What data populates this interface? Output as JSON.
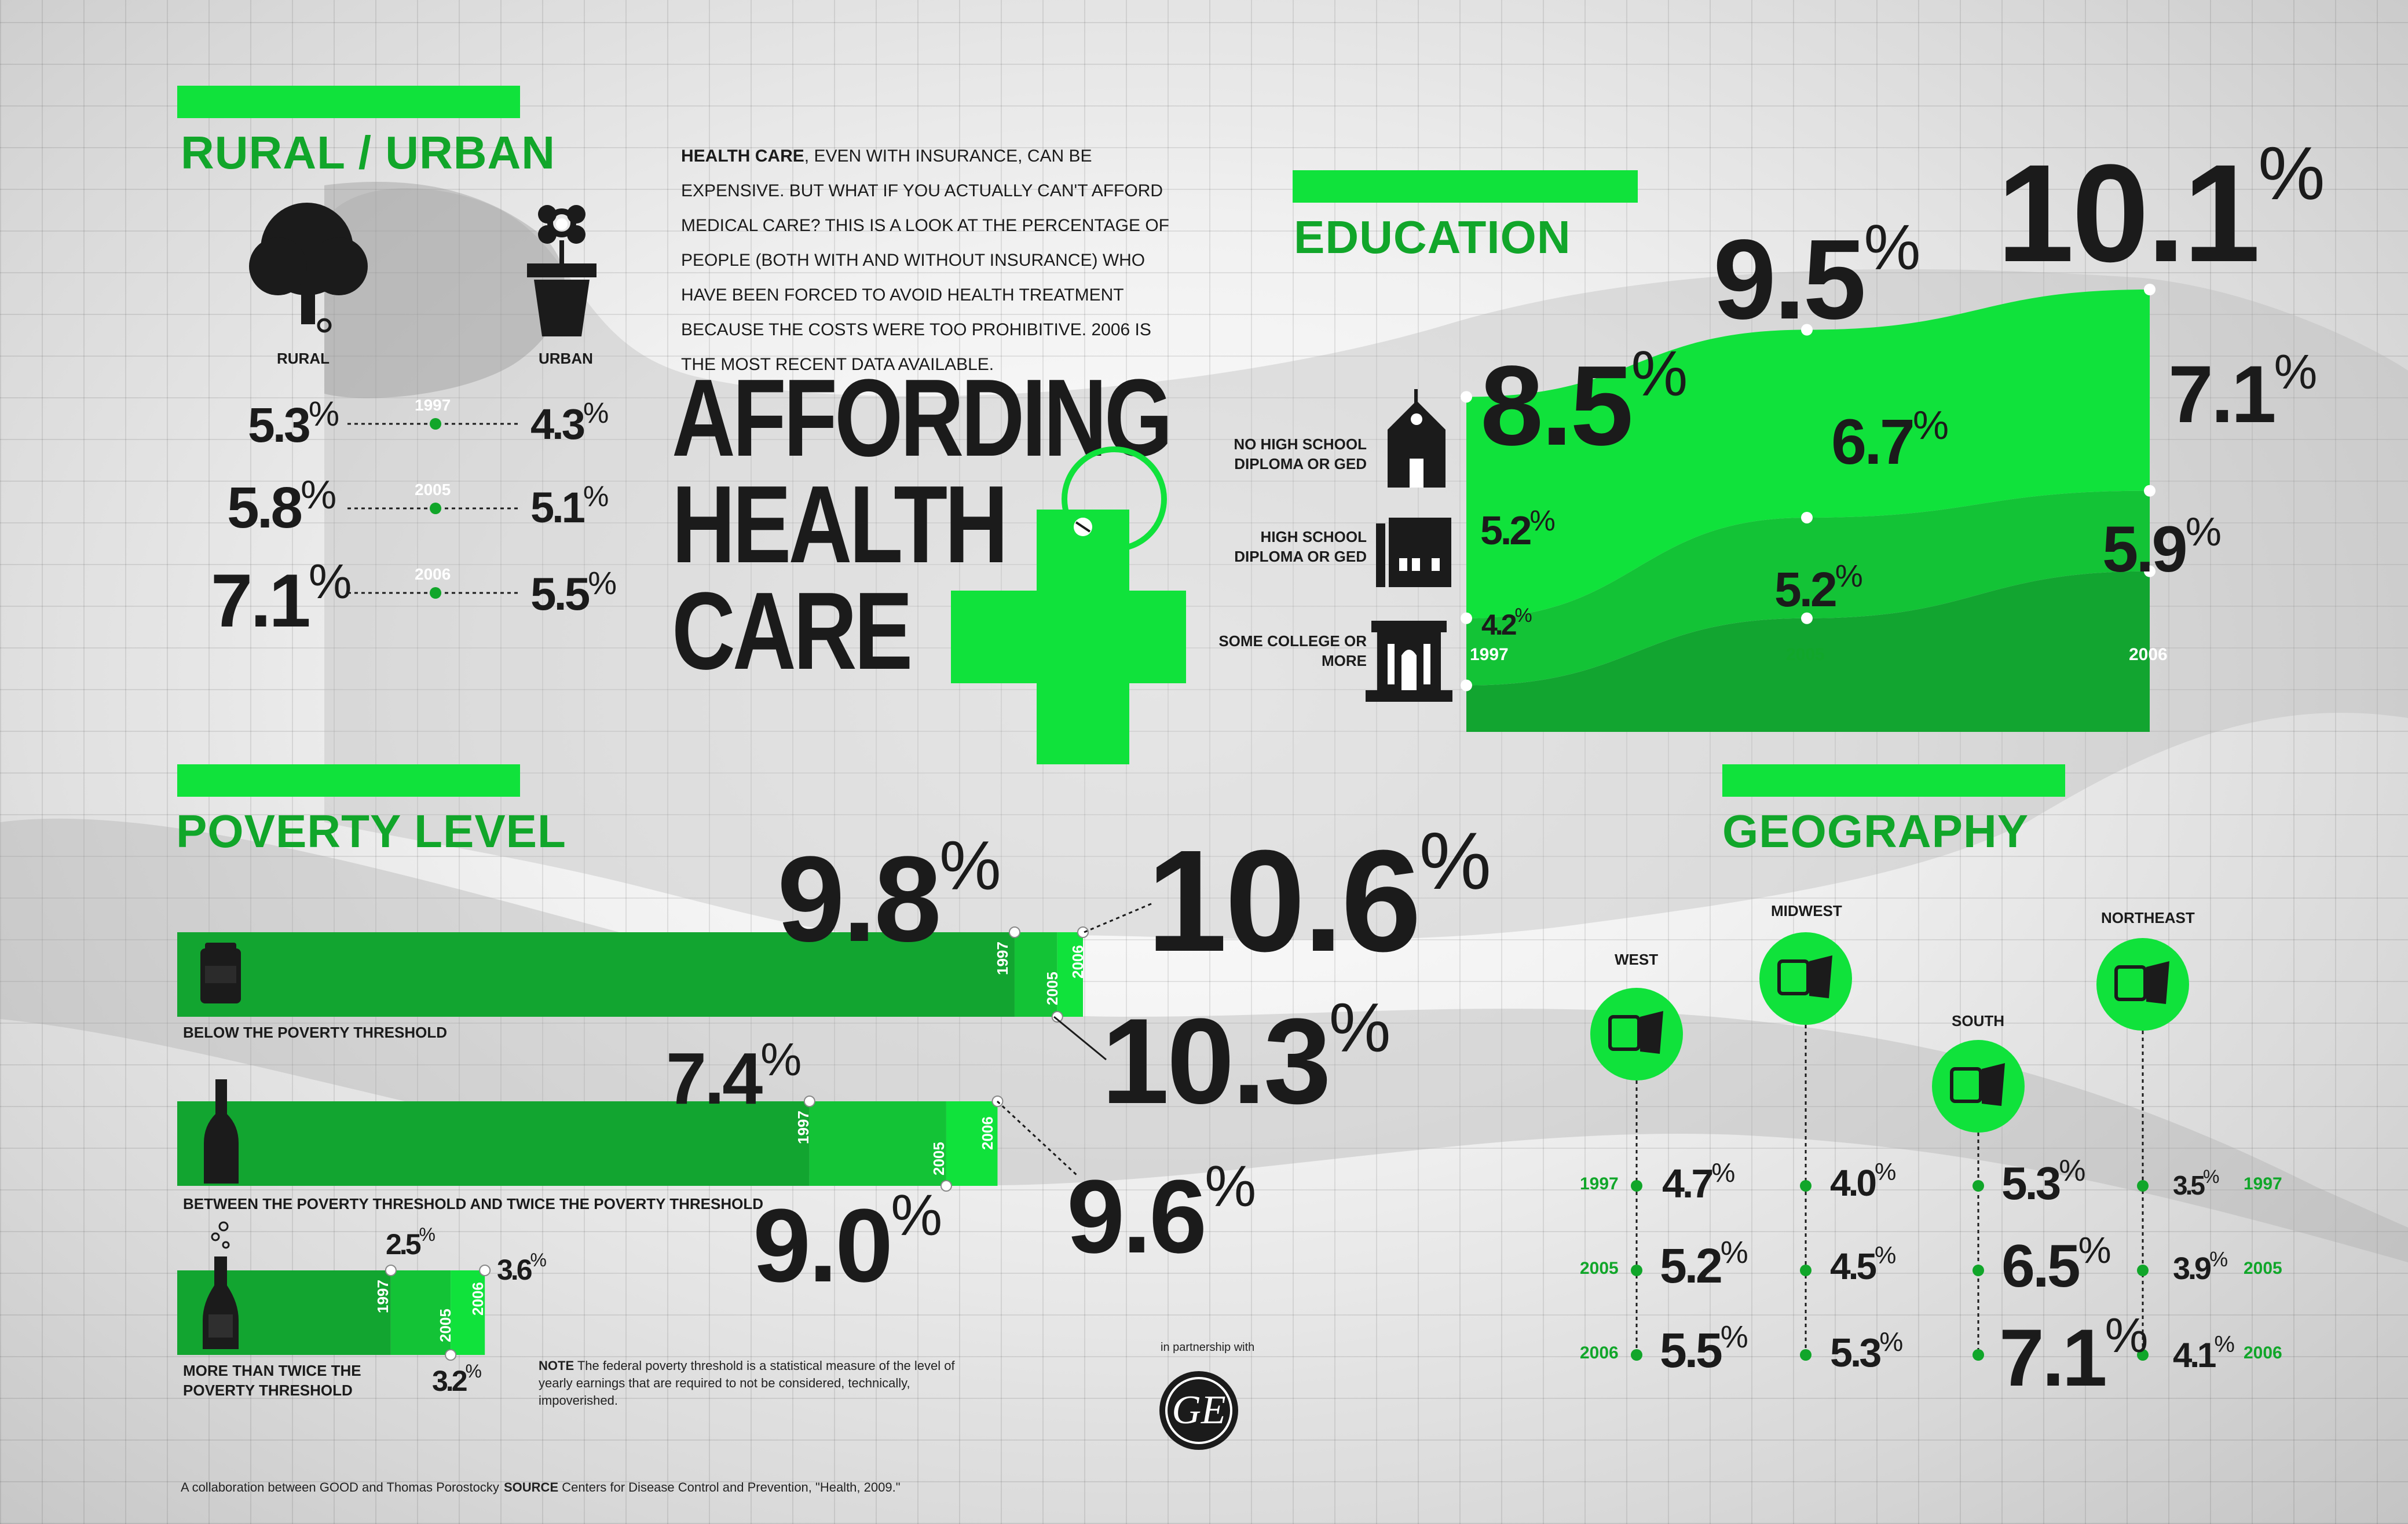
{
  "colors": {
    "accent": "#10e23b",
    "accent_dark": "#11a62a",
    "text": "#1b1b1b"
  },
  "intro": {
    "lead": "HEALTH CARE",
    "rest": ", EVEN WITH INSURANCE, CAN BE EXPENSIVE. BUT WHAT IF YOU ACTUALLY CAN'T AFFORD MEDICAL CARE? THIS IS A LOOK AT THE PERCENTAGE OF PEOPLE (BOTH WITH AND WITHOUT INSURANCE) WHO HAVE BEEN FORCED TO AVOID HEALTH TREATMENT BECAUSE THE COSTS WERE TOO PROHIBITIVE. 2006 IS THE MOST RECENT DATA AVAILABLE."
  },
  "title": {
    "line1": "AFFORDING",
    "line2": "HEALTH",
    "line3": "CARE"
  },
  "percent_sign": "%",
  "chart_data": [
    {
      "type": "table",
      "title": "RURAL / URBAN",
      "categories": [
        "1997",
        "2005",
        "2006"
      ],
      "series": [
        {
          "name": "RURAL",
          "icon": "tree-icon",
          "labels": [
            "5.3",
            "5.8",
            "7.1"
          ],
          "values": [
            5.3,
            5.8,
            7.1
          ]
        },
        {
          "name": "URBAN",
          "icon": "flower-pot-icon",
          "labels": [
            "4.3",
            "5.1",
            "5.5"
          ],
          "values": [
            4.3,
            5.1,
            5.5
          ]
        }
      ]
    },
    {
      "type": "area",
      "title": "EDUCATION",
      "categories": [
        "1997",
        "2005",
        "2006"
      ],
      "series": [
        {
          "name": "NO HIGH SCHOOL DIPLOMA OR GED",
          "icon": "schoolhouse-icon",
          "labels": [
            "8.5",
            "9.5",
            "10.1"
          ],
          "values": [
            8.5,
            9.5,
            10.1
          ]
        },
        {
          "name": "HIGH SCHOOL DIPLOMA OR GED",
          "icon": "school-building-icon",
          "labels": [
            "5.2",
            "6.7",
            "7.1"
          ],
          "values": [
            5.2,
            6.7,
            7.1
          ]
        },
        {
          "name": "SOME COLLEGE OR MORE",
          "icon": "college-building-icon",
          "labels": [
            "4.2",
            "5.2",
            "5.9"
          ],
          "values": [
            4.2,
            5.2,
            5.9
          ]
        }
      ]
    },
    {
      "type": "bar",
      "title": "POVERTY LEVEL",
      "categories": [
        "1997",
        "2005",
        "2006"
      ],
      "series": [
        {
          "name": "BELOW THE POVERTY THRESHOLD",
          "icon": "can-icon",
          "labels": [
            "9.8",
            "10.3",
            "10.6"
          ],
          "values": [
            9.8,
            10.3,
            10.6
          ]
        },
        {
          "name": "BETWEEN THE POVERTY THRESHOLD AND TWICE THE POVERTY THRESHOLD",
          "icon": "beer-bottle-icon",
          "labels": [
            "7.4",
            "9.0",
            "9.6"
          ],
          "values": [
            7.4,
            9.0,
            9.6
          ]
        },
        {
          "name": "MORE THAN TWICE THE POVERTY THRESHOLD",
          "icon": "champagne-bottle-icon",
          "labels": [
            "2.5",
            "3.2",
            "3.6"
          ],
          "values": [
            2.5,
            3.2,
            3.6
          ]
        }
      ]
    },
    {
      "type": "table",
      "title": "GEOGRAPHY",
      "categories": [
        "1997",
        "2005",
        "2006"
      ],
      "series": [
        {
          "name": "WEST",
          "icon": "west-map-icon",
          "labels": [
            "4.7",
            "5.2",
            "5.5"
          ],
          "values": [
            4.7,
            5.2,
            5.5
          ]
        },
        {
          "name": "MIDWEST",
          "icon": "midwest-map-icon",
          "labels": [
            "4.0",
            "4.5",
            "5.3"
          ],
          "values": [
            4.0,
            4.5,
            5.3
          ]
        },
        {
          "name": "SOUTH",
          "icon": "south-map-icon",
          "labels": [
            "5.3",
            "6.5",
            "7.1"
          ],
          "values": [
            5.3,
            6.5,
            7.1
          ]
        },
        {
          "name": "NORTHEAST",
          "icon": "northeast-map-icon",
          "labels": [
            "3.5",
            "3.9",
            "4.1"
          ],
          "values": [
            3.5,
            3.9,
            4.1
          ]
        }
      ]
    }
  ],
  "poverty_note": {
    "lead": "NOTE",
    "text": " The federal poverty threshold is a statistical measure of the level of yearly earnings that are required to not be considered, technically, impoverished."
  },
  "partnership": "in partnership with",
  "logo_text": "GE",
  "footer": {
    "credit": "A collaboration between GOOD and Thomas Porostocky",
    "source_lead": "SOURCE",
    "source_text": " Centers for Disease Control and Prevention, \"Health, 2009.\""
  }
}
